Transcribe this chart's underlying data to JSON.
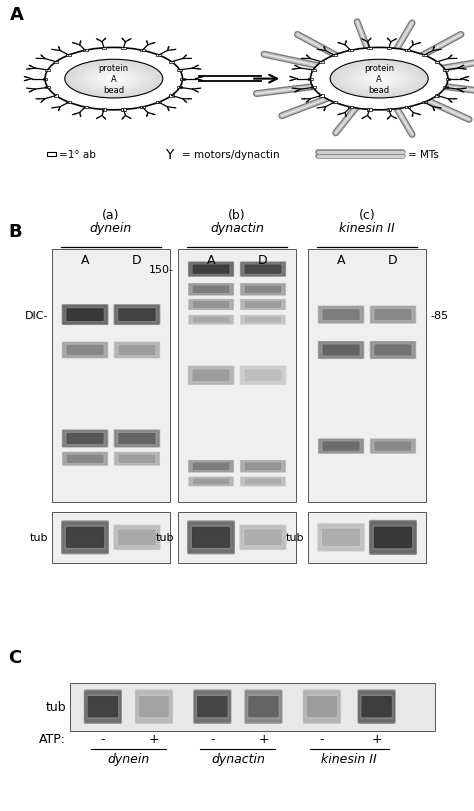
{
  "fig_width": 4.74,
  "fig_height": 8.12,
  "bg_color": "#ffffff",
  "panel_A_label": "A",
  "panel_B_label": "B",
  "panel_C_label": "C",
  "panel_B_sublabel_a": "(a)",
  "panel_B_sublabel_b": "(b)",
  "panel_B_sublabel_c": "(c)",
  "panel_B_dynein": "dynein",
  "panel_B_dynactin": "dynactin",
  "panel_B_kinesin": "kinesin II",
  "panel_B_A": "A",
  "panel_B_D": "D",
  "panel_B_DIC": "DIC-",
  "panel_B_150": "150-",
  "panel_B_85": "-85",
  "panel_B_tub": "tub",
  "panel_C_tub": "tub",
  "panel_C_ATP": "ATP:",
  "panel_C_minus": "-",
  "panel_C_plus": "+",
  "panel_C_dynein": "dynein",
  "panel_C_dynactin": "dynactin",
  "panel_C_kinesin": "kinesin II",
  "bead_text": "protein\nA\nbead",
  "legend_sq": "=1° ab",
  "legend_motor": "= motors/dynactin",
  "legend_mt": "= MTs",
  "blot_bg": "#e8e8e8",
  "blot_light_bg": "#f0f0f0"
}
